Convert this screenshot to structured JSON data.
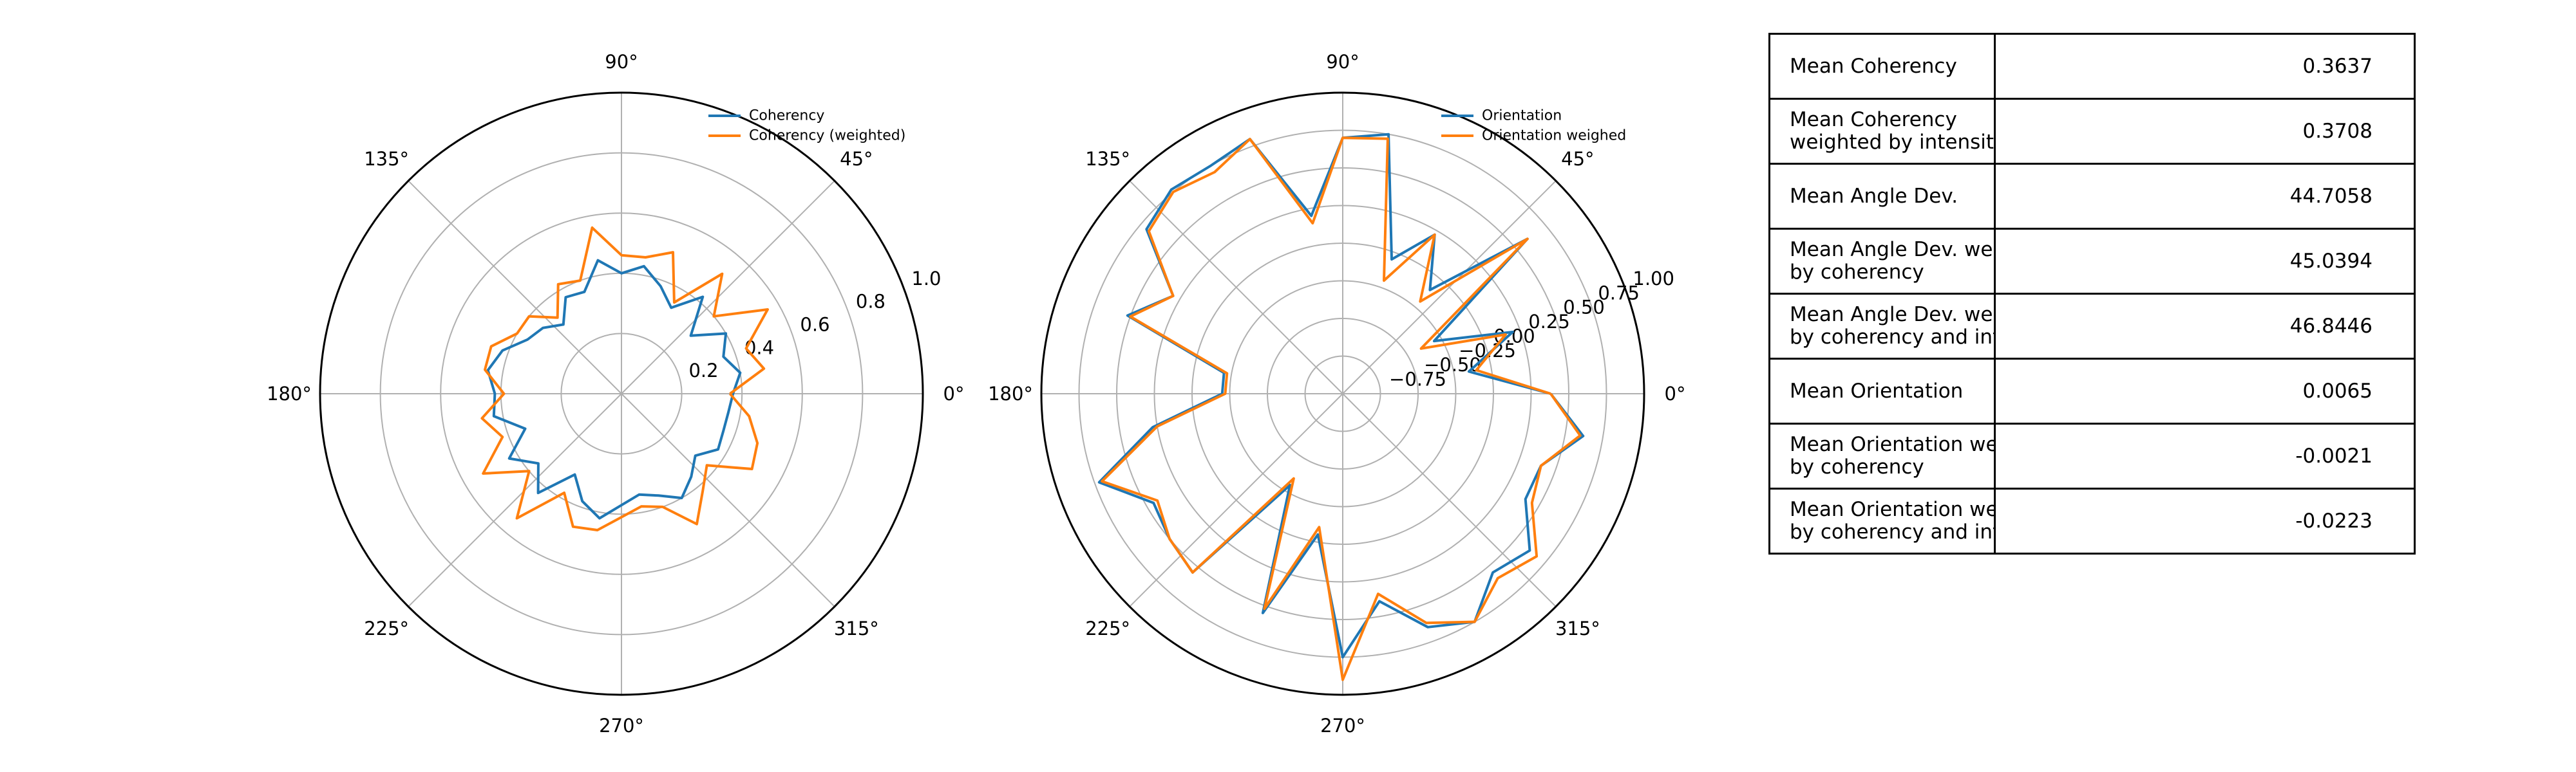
{
  "colors": {
    "series1": "#1f77b4",
    "series2": "#ff7f0e",
    "grid": "#b0b0b0",
    "axis": "#000000"
  },
  "chart_data": [
    {
      "type": "polar-line",
      "theta_tick_labels": [
        "0°",
        "45°",
        "90°",
        "135°",
        "180°",
        "225°",
        "270°",
        "315°"
      ],
      "r_tick_labels": [
        "0.2",
        "0.4",
        "0.6",
        "0.8",
        "1.0"
      ],
      "r_ticks": [
        0.2,
        0.4,
        0.6,
        0.8,
        1.0
      ],
      "rlim": [
        0,
        1.0
      ],
      "legend_placement": "upper-right",
      "theta_deg": [
        0,
        10,
        20,
        30,
        40,
        50,
        60,
        70,
        80,
        90,
        100,
        110,
        120,
        130,
        140,
        150,
        160,
        170,
        180,
        190,
        200,
        210,
        220,
        230,
        240,
        250,
        260,
        270,
        280,
        290,
        300,
        310,
        320,
        330,
        340,
        350
      ],
      "series": [
        {
          "name": "Coherency",
          "color_key": "series1",
          "values": [
            0.37,
            0.4,
            0.36,
            0.4,
            0.3,
            0.42,
            0.33,
            0.38,
            0.43,
            0.4,
            0.45,
            0.36,
            0.37,
            0.3,
            0.34,
            0.36,
            0.42,
            0.45,
            0.42,
            0.43,
            0.34,
            0.43,
            0.36,
            0.43,
            0.31,
            0.38,
            0.42,
            0.37,
            0.34,
            0.36,
            0.4,
            0.36,
            0.32,
            0.37,
            0.36,
            0.36
          ]
        },
        {
          "name": "Coherency (weighted)",
          "color_key": "series2",
          "values": [
            0.36,
            0.48,
            0.44,
            0.56,
            0.4,
            0.52,
            0.35,
            0.5,
            0.46,
            0.46,
            0.56,
            0.4,
            0.42,
            0.33,
            0.4,
            0.4,
            0.46,
            0.46,
            0.39,
            0.47,
            0.42,
            0.53,
            0.4,
            0.54,
            0.38,
            0.47,
            0.46,
            0.41,
            0.38,
            0.4,
            0.5,
            0.42,
            0.37,
            0.5,
            0.48,
            0.43
          ]
        }
      ]
    },
    {
      "type": "polar-line",
      "theta_tick_labels": [
        "0°",
        "45°",
        "90°",
        "135°",
        "180°",
        "225°",
        "270°",
        "315°"
      ],
      "r_tick_labels": [
        "−0.75",
        "−0.50",
        "−0.25",
        "0.00",
        "0.25",
        "0.50",
        "0.75",
        "1.00"
      ],
      "r_ticks": [
        -0.75,
        -0.5,
        -0.25,
        0.0,
        0.25,
        0.5,
        0.75,
        1.0
      ],
      "rlim": [
        -1.0,
        1.0
      ],
      "legend_placement": "upper-right",
      "theta_deg": [
        0,
        10,
        20,
        30,
        40,
        50,
        60,
        70,
        80,
        90,
        100,
        110,
        120,
        130,
        140,
        150,
        160,
        170,
        180,
        190,
        200,
        210,
        220,
        230,
        240,
        250,
        260,
        270,
        280,
        290,
        300,
        310,
        320,
        330,
        340,
        350
      ],
      "series": [
        {
          "name": "Orientation",
          "color_key": "series1",
          "values": [
            0.38,
            -0.15,
            0.2,
            -0.3,
            0.6,
            -0.1,
            0.22,
            -0.05,
            0.75,
            0.7,
            0.2,
            0.8,
            0.75,
            0.77,
            0.7,
            0.3,
            0.52,
            -0.2,
            -0.2,
            0.28,
            0.72,
            0.45,
            0.5,
            0.55,
            -0.3,
            0.55,
            -0.05,
            0.75,
            0.4,
            0.65,
            0.75,
            0.55,
            0.62,
            0.4,
            0.4,
            0.62
          ]
        },
        {
          "name": "Orientation weighed",
          "color_key": "series2",
          "values": [
            0.38,
            -0.1,
            0.15,
            -0.4,
            0.6,
            -0.2,
            0.22,
            -0.2,
            0.72,
            0.7,
            0.15,
            0.8,
            0.7,
            0.75,
            0.68,
            0.3,
            0.5,
            -0.22,
            -0.22,
            0.25,
            0.7,
            0.42,
            0.5,
            0.55,
            -0.35,
            0.52,
            -0.1,
            0.9,
            0.35,
            0.62,
            0.75,
            0.6,
            0.68,
            0.45,
            0.4,
            0.6
          ]
        }
      ]
    },
    {
      "type": "table",
      "rows": [
        {
          "label": "Mean Coherency",
          "value": "0.3637"
        },
        {
          "label": "Mean Coherency\nweighted by intensit",
          "value": "0.3708"
        },
        {
          "label": "Mean Angle Dev.",
          "value": "44.7058"
        },
        {
          "label": "Mean Angle Dev. we\nby coherency",
          "value": "45.0394"
        },
        {
          "label": "Mean Angle Dev. we\nby coherency and int",
          "value": "46.8446"
        },
        {
          "label": "Mean Orientation",
          "value": "0.0065"
        },
        {
          "label": "Mean Orientation we\nby coherency",
          "value": "-0.0021"
        },
        {
          "label": "Mean Orientation we\nby coherency and int",
          "value": "-0.0223"
        }
      ]
    }
  ]
}
